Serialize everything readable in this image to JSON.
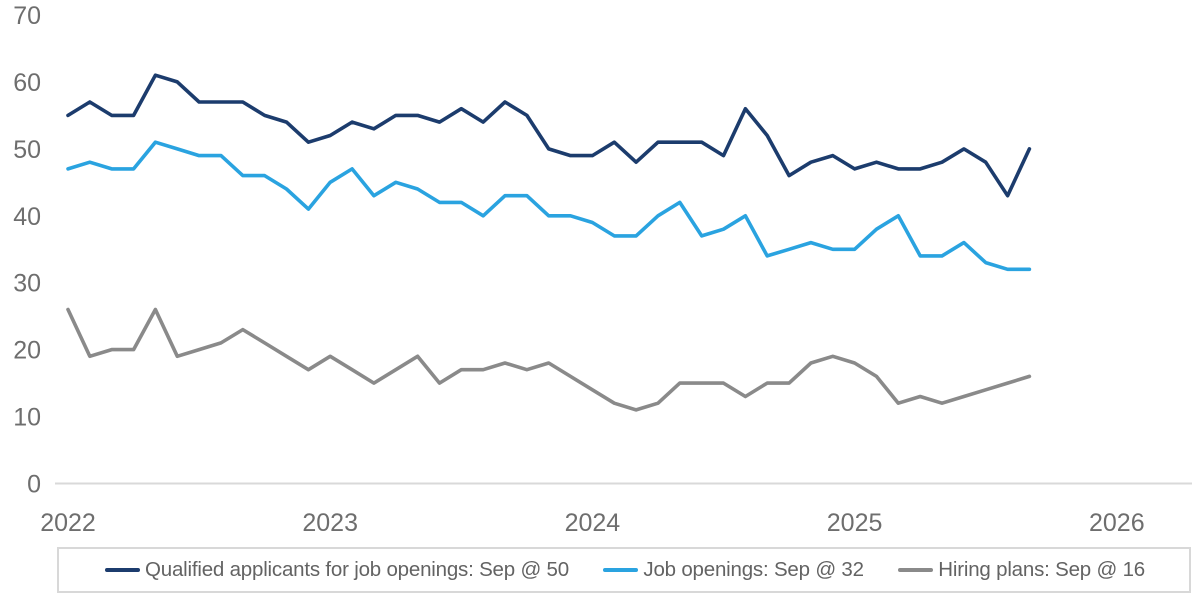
{
  "chart_data": {
    "type": "line",
    "title": "",
    "xlabel": "",
    "ylabel": "",
    "grid": false,
    "legend_position": "bottom",
    "x_unit": "month",
    "x_start": "2022-01",
    "x_end": "2025-09",
    "x_ticks": [
      "2022",
      "2023",
      "2024",
      "2025",
      "2026"
    ],
    "y_ticks": [
      0,
      10,
      20,
      30,
      40,
      50,
      60,
      70
    ],
    "ylim": [
      0,
      70
    ],
    "series": [
      {
        "name": "Qualified applicants for job openings",
        "legend_label": "Qualified applicants for job openings: Sep @ 50",
        "color": "#1c3c6d",
        "latest": {
          "month": "Sep",
          "value": 50
        },
        "values": [
          55,
          57,
          55,
          55,
          61,
          60,
          57,
          57,
          57,
          55,
          54,
          51,
          52,
          54,
          53,
          55,
          55,
          54,
          56,
          54,
          57,
          55,
          50,
          49,
          49,
          51,
          48,
          51,
          51,
          51,
          49,
          56,
          52,
          46,
          48,
          49,
          47,
          48,
          47,
          47,
          48,
          50,
          48,
          43,
          50
        ]
      },
      {
        "name": "Job openings",
        "legend_label": "Job openings: Sep @ 32",
        "color": "#2aa3e0",
        "latest": {
          "month": "Sep",
          "value": 32
        },
        "values": [
          47,
          48,
          47,
          47,
          51,
          50,
          49,
          49,
          46,
          46,
          44,
          41,
          45,
          47,
          43,
          45,
          44,
          42,
          42,
          40,
          43,
          43,
          40,
          40,
          39,
          37,
          37,
          40,
          42,
          37,
          38,
          40,
          34,
          35,
          36,
          35,
          35,
          38,
          40,
          34,
          34,
          36,
          33,
          32,
          32
        ]
      },
      {
        "name": "Hiring plans",
        "legend_label": "Hiring plans: Sep @ 16",
        "color": "#8a8a8a",
        "latest": {
          "month": "Sep",
          "value": 16
        },
        "values": [
          26,
          19,
          20,
          20,
          26,
          19,
          20,
          21,
          23,
          21,
          19,
          17,
          19,
          17,
          15,
          17,
          19,
          15,
          17,
          17,
          18,
          17,
          18,
          16,
          14,
          12,
          11,
          12,
          15,
          15,
          15,
          13,
          15,
          15,
          18,
          19,
          18,
          16,
          12,
          13,
          12,
          13,
          14,
          15,
          16
        ]
      }
    ]
  },
  "colors": {
    "background": "#ffffff",
    "axis_line": "#d9d9d9",
    "tick_text": "#6e6e6e",
    "legend_text": "#636363",
    "legend_border": "#d8d8d8"
  }
}
